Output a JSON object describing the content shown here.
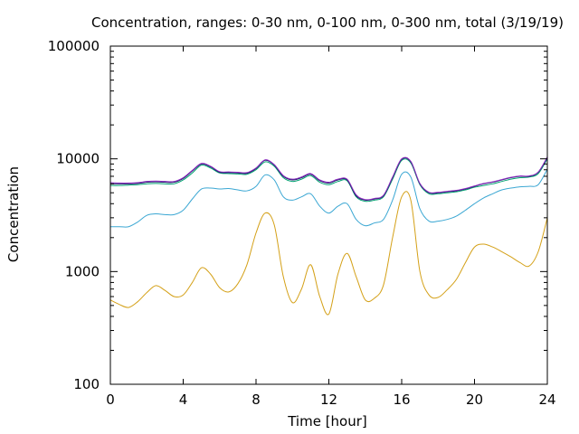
{
  "chart_data": {
    "type": "line",
    "title": "Concentration, ranges: 0-30 nm, 0-100 nm, 0-300 nm, total (3/19/19)",
    "xlabel": "Time [hour]",
    "ylabel": "Concentration",
    "xlim": [
      0,
      24
    ],
    "ylim": [
      100,
      100000
    ],
    "yscale": "log",
    "grid": false,
    "x_ticks": [
      0,
      4,
      8,
      12,
      16,
      20,
      24
    ],
    "x_tick_labels": [
      "0",
      "4",
      "8",
      "12",
      "16",
      "20",
      "24"
    ],
    "y_ticks": [
      100,
      1000,
      10000,
      100000
    ],
    "y_tick_labels": [
      "100",
      "1000",
      "10000",
      "100000"
    ],
    "x": [
      0,
      0.5,
      1,
      1.5,
      2,
      2.5,
      3,
      3.5,
      4,
      4.5,
      5,
      5.5,
      6,
      6.5,
      7,
      7.5,
      8,
      8.5,
      9,
      9.5,
      10,
      10.5,
      11,
      11.5,
      12,
      12.5,
      13,
      13.5,
      14,
      14.5,
      15,
      15.5,
      16,
      16.5,
      17,
      17.5,
      18,
      18.5,
      19,
      19.5,
      20,
      20.5,
      21,
      21.5,
      22,
      22.5,
      23,
      23.5,
      24
    ],
    "series": [
      {
        "color": "#d4a017",
        "values": [
          560,
          510,
          480,
          540,
          650,
          750,
          680,
          600,
          620,
          800,
          1080,
          950,
          720,
          660,
          780,
          1150,
          2200,
          3300,
          2600,
          900,
          530,
          700,
          1150,
          600,
          420,
          950,
          1450,
          900,
          560,
          580,
          760,
          2000,
          4600,
          4300,
          1000,
          620,
          590,
          690,
          850,
          1200,
          1650,
          1750,
          1650,
          1500,
          1350,
          1200,
          1120,
          1500,
          3000
        ]
      },
      {
        "color": "#3ba7d3",
        "values": [
          2500,
          2500,
          2500,
          2750,
          3150,
          3250,
          3200,
          3200,
          3500,
          4400,
          5400,
          5500,
          5400,
          5450,
          5300,
          5200,
          5700,
          7200,
          6500,
          4600,
          4300,
          4600,
          4900,
          3800,
          3300,
          3800,
          4000,
          2900,
          2550,
          2700,
          2900,
          4300,
          7300,
          6900,
          3600,
          2800,
          2800,
          2900,
          3100,
          3500,
          4000,
          4500,
          4900,
          5300,
          5500,
          5650,
          5700,
          5900,
          8100
        ]
      },
      {
        "color": "#00a070",
        "values": [
          5800,
          5800,
          5850,
          5900,
          6000,
          6050,
          6000,
          6000,
          6500,
          7500,
          8800,
          8300,
          7500,
          7400,
          7350,
          7300,
          8000,
          9400,
          8600,
          6800,
          6300,
          6600,
          7100,
          6200,
          5900,
          6300,
          6400,
          4600,
          4200,
          4300,
          4600,
          6600,
          9700,
          9200,
          5900,
          4900,
          4900,
          5000,
          5100,
          5300,
          5600,
          5800,
          6000,
          6300,
          6600,
          6800,
          6900,
          7400,
          10000
        ]
      },
      {
        "color": "#1a1a66",
        "values": [
          6000,
          6000,
          6000,
          6050,
          6200,
          6250,
          6200,
          6200,
          6700,
          7800,
          9000,
          8500,
          7600,
          7550,
          7500,
          7450,
          8200,
          9700,
          8800,
          7000,
          6500,
          6800,
          7300,
          6400,
          6100,
          6500,
          6500,
          4700,
          4300,
          4400,
          4700,
          6800,
          9900,
          9400,
          6000,
          5000,
          5000,
          5100,
          5200,
          5400,
          5700,
          6000,
          6200,
          6500,
          6800,
          7000,
          7000,
          7600,
          10300
        ]
      },
      {
        "color": "#8b2bbf",
        "values": [
          6150,
          6100,
          6100,
          6150,
          6300,
          6350,
          6300,
          6300,
          6800,
          7900,
          9100,
          8600,
          7700,
          7650,
          7600,
          7550,
          8300,
          9800,
          8900,
          7100,
          6600,
          6900,
          7400,
          6500,
          6200,
          6600,
          6600,
          4800,
          4350,
          4450,
          4750,
          6900,
          10000,
          9500,
          6050,
          5050,
          5050,
          5150,
          5250,
          5450,
          5750,
          6050,
          6250,
          6550,
          6850,
          7050,
          7050,
          7650,
          10400
        ]
      }
    ]
  }
}
